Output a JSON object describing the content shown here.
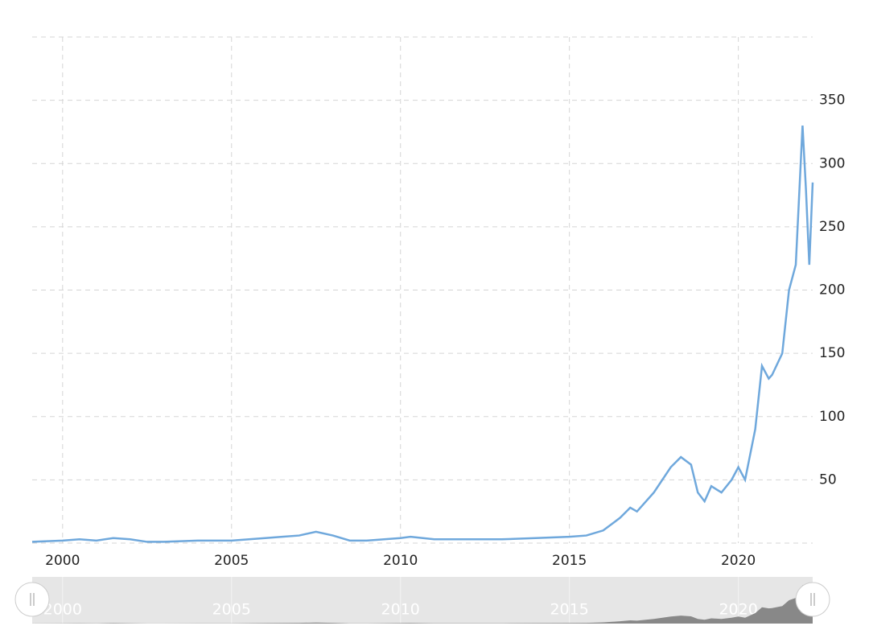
{
  "chart_data": {
    "type": "line",
    "x": [
      1999.1,
      2000,
      2000.5,
      2001,
      2001.5,
      2002,
      2002.5,
      2003,
      2004,
      2005,
      2006,
      2006.5,
      2007,
      2007.5,
      2008,
      2008.5,
      2009,
      2010,
      2010.3,
      2011,
      2012,
      2013,
      2014,
      2015,
      2015.5,
      2016,
      2016.5,
      2016.8,
      2017,
      2017.5,
      2018,
      2018.3,
      2018.6,
      2018.8,
      2019,
      2019.2,
      2019.5,
      2019.8,
      2020,
      2020.2,
      2020.5,
      2020.7,
      2020.9,
      2021,
      2021.3,
      2021.5,
      2021.7,
      2021.9,
      2022,
      2022.1,
      2022.2
    ],
    "series": [
      {
        "color": "#6fa8dc",
        "values": [
          1,
          2,
          3,
          2,
          4,
          3,
          1,
          1,
          2,
          2,
          4,
          5,
          6,
          9,
          6,
          2,
          2,
          4,
          5,
          3,
          3,
          3,
          4,
          5,
          6,
          10,
          20,
          28,
          25,
          40,
          60,
          68,
          62,
          40,
          33,
          45,
          40,
          50,
          60,
          50,
          90,
          140,
          130,
          133,
          150,
          200,
          220,
          330,
          280,
          220,
          285
        ]
      }
    ],
    "xlim": [
      1999.1,
      2022.2
    ],
    "xticks": [
      2000,
      2005,
      2010,
      2015,
      2020
    ],
    "ylim": [
      0,
      400
    ],
    "yticks": [
      50,
      100,
      150,
      200,
      250,
      300,
      350
    ],
    "grid": true
  }
}
